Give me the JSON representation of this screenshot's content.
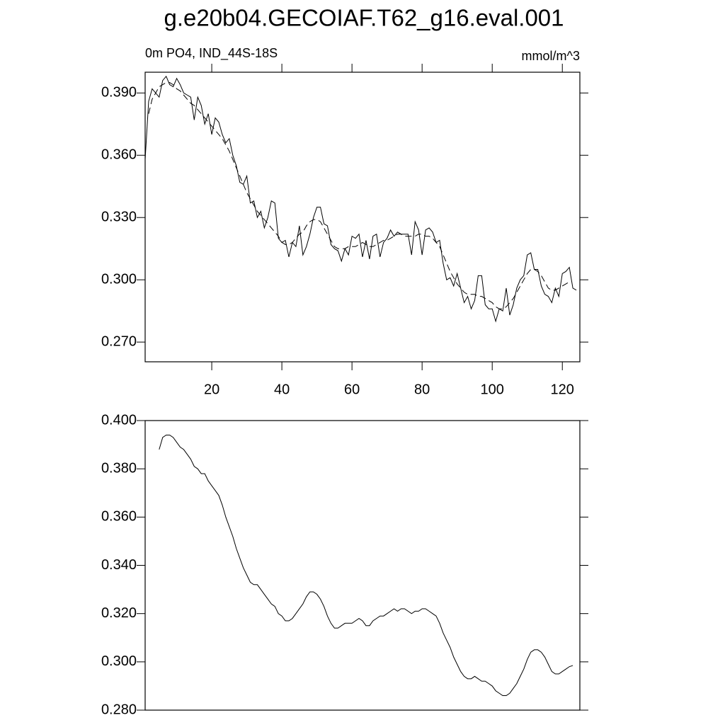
{
  "chart_data": [
    {
      "type": "line",
      "title": "g.e20b04.GECOIAF.T62_g16.eval.001",
      "subtitle": "0m PO4, IND_44S-18S",
      "units": "mmol/m^3",
      "x": [
        1,
        2,
        3,
        4,
        5,
        6,
        7,
        8,
        9,
        10,
        11,
        12,
        13,
        14,
        15,
        16,
        17,
        18,
        19,
        20,
        21,
        22,
        23,
        24,
        25,
        26,
        27,
        28,
        29,
        30,
        31,
        32,
        33,
        34,
        35,
        36,
        37,
        38,
        39,
        40,
        41,
        42,
        43,
        44,
        45,
        46,
        47,
        48,
        49,
        50,
        51,
        52,
        53,
        54,
        55,
        56,
        57,
        58,
        59,
        60,
        61,
        62,
        63,
        64,
        65,
        66,
        67,
        68,
        69,
        70,
        71,
        72,
        73,
        74,
        75,
        76,
        77,
        78,
        79,
        80,
        81,
        82,
        83,
        84,
        85,
        86,
        87,
        88,
        89,
        90,
        91,
        92,
        93,
        94,
        95,
        96,
        97,
        98,
        99,
        100,
        101,
        102,
        103,
        104,
        105,
        106,
        107,
        108,
        109,
        110,
        111,
        112,
        113,
        114,
        115,
        116,
        117,
        118,
        119,
        120,
        121,
        122,
        123,
        124
      ],
      "series": [
        {
          "color": "#000000",
          "dashed": false,
          "values": [
            0.358,
            0.386,
            0.392,
            0.39,
            0.388,
            0.396,
            0.398,
            0.394,
            0.393,
            0.397,
            0.394,
            0.39,
            0.389,
            0.388,
            0.377,
            0.388,
            0.384,
            0.375,
            0.38,
            0.37,
            0.378,
            0.376,
            0.37,
            0.366,
            0.368,
            0.36,
            0.355,
            0.347,
            0.346,
            0.35,
            0.337,
            0.338,
            0.33,
            0.333,
            0.325,
            0.33,
            0.338,
            0.337,
            0.32,
            0.318,
            0.319,
            0.311,
            0.318,
            0.316,
            0.326,
            0.312,
            0.316,
            0.322,
            0.33,
            0.335,
            0.335,
            0.327,
            0.326,
            0.317,
            0.315,
            0.314,
            0.309,
            0.315,
            0.312,
            0.321,
            0.32,
            0.322,
            0.311,
            0.319,
            0.31,
            0.321,
            0.322,
            0.311,
            0.318,
            0.32,
            0.324,
            0.321,
            0.323,
            0.322,
            0.322,
            0.322,
            0.312,
            0.328,
            0.324,
            0.312,
            0.324,
            0.325,
            0.323,
            0.318,
            0.319,
            0.308,
            0.3,
            0.301,
            0.297,
            0.303,
            0.296,
            0.289,
            0.292,
            0.286,
            0.29,
            0.302,
            0.302,
            0.288,
            0.286,
            0.286,
            0.28,
            0.286,
            0.285,
            0.296,
            0.283,
            0.288,
            0.296,
            0.3,
            0.302,
            0.312,
            0.313,
            0.305,
            0.305,
            0.297,
            0.293,
            0.292,
            0.289,
            0.296,
            0.292,
            0.303,
            0.304,
            0.306,
            0.296,
            0.295
          ]
        },
        {
          "color": "#000000",
          "dashed": true,
          "values": [
            null,
            0.38,
            0.387,
            0.39,
            0.393,
            0.394,
            0.395,
            0.395,
            0.394,
            0.392,
            0.391,
            0.389,
            0.387,
            0.385,
            0.384,
            0.382,
            0.38,
            0.378,
            0.376,
            0.374,
            0.372,
            0.37,
            0.368,
            0.365,
            0.362,
            0.358,
            0.354,
            0.35,
            0.346,
            0.342,
            0.339,
            0.336,
            0.333,
            0.331,
            0.329,
            0.327,
            0.325,
            0.323,
            0.321,
            0.318,
            0.317,
            0.317,
            0.318,
            0.32,
            0.322,
            0.323,
            0.326,
            0.328,
            0.329,
            0.329,
            0.328,
            0.325,
            0.322,
            0.319,
            0.316,
            0.315,
            0.315,
            0.315,
            0.316,
            0.316,
            0.316,
            0.317,
            0.318,
            0.317,
            0.316,
            0.316,
            0.317,
            0.318,
            0.319,
            0.319,
            0.32,
            0.321,
            0.322,
            0.322,
            0.321,
            0.321,
            0.321,
            0.321,
            0.322,
            0.322,
            0.321,
            0.321,
            0.32,
            0.318,
            0.316,
            0.312,
            0.308,
            0.304,
            0.301,
            0.298,
            0.296,
            0.294,
            0.293,
            0.293,
            0.293,
            0.292,
            0.292,
            0.291,
            0.29,
            0.289,
            0.287,
            0.286,
            0.286,
            0.287,
            0.289,
            0.291,
            0.294,
            0.297,
            0.3,
            0.303,
            0.305,
            0.305,
            0.304,
            0.302,
            0.299,
            0.296,
            0.295,
            0.295,
            0.296,
            0.297,
            0.298,
            0.299,
            null,
            null
          ]
        }
      ],
      "xlim": [
        1,
        125
      ],
      "xticks": [
        20,
        40,
        60,
        80,
        100,
        120
      ],
      "ylim": [
        0.2605,
        0.4
      ],
      "yticks": [
        {
          "value": 0.27,
          "label": "0.270"
        },
        {
          "value": 0.3,
          "label": "0.300"
        },
        {
          "value": 0.33,
          "label": "0.330"
        },
        {
          "value": 0.36,
          "label": "0.360"
        },
        {
          "value": 0.39,
          "label": "0.390"
        }
      ]
    },
    {
      "type": "line",
      "x": [
        1,
        2,
        3,
        4,
        5,
        6,
        7,
        8,
        9,
        10,
        11,
        12,
        13,
        14,
        15,
        16,
        17,
        18,
        19,
        20,
        21,
        22,
        23,
        24,
        25,
        26,
        27,
        28,
        29,
        30,
        31,
        32,
        33,
        34,
        35,
        36,
        37,
        38,
        39,
        40,
        41,
        42,
        43,
        44,
        45,
        46,
        47,
        48,
        49,
        50,
        51,
        52,
        53,
        54,
        55,
        56,
        57,
        58,
        59,
        60,
        61,
        62,
        63,
        64,
        65,
        66,
        67,
        68,
        69,
        70,
        71,
        72,
        73,
        74,
        75,
        76,
        77,
        78,
        79,
        80,
        81,
        82,
        83,
        84,
        85,
        86,
        87,
        88,
        89,
        90,
        91,
        92,
        93,
        94,
        95,
        96,
        97,
        98,
        99,
        100,
        101,
        102,
        103,
        104,
        105,
        106,
        107,
        108,
        109,
        110,
        111,
        112,
        113,
        114,
        115,
        116,
        117,
        118,
        119,
        120,
        121,
        122,
        123,
        124
      ],
      "series": [
        {
          "color": "#000000",
          "dashed": false,
          "values": [
            null,
            null,
            null,
            null,
            0.388,
            0.393,
            0.394,
            0.394,
            0.393,
            0.391,
            0.389,
            0.388,
            0.386,
            0.384,
            0.381,
            0.38,
            0.378,
            0.378,
            0.375,
            0.373,
            0.371,
            0.369,
            0.365,
            0.36,
            0.356,
            0.352,
            0.347,
            0.343,
            0.339,
            0.336,
            0.333,
            0.332,
            0.332,
            0.33,
            0.328,
            0.326,
            0.324,
            0.323,
            0.32,
            0.319,
            0.317,
            0.317,
            0.318,
            0.32,
            0.322,
            0.324,
            0.327,
            0.329,
            0.329,
            0.328,
            0.326,
            0.323,
            0.319,
            0.316,
            0.314,
            0.314,
            0.315,
            0.316,
            0.316,
            0.316,
            0.317,
            0.318,
            0.317,
            0.315,
            0.315,
            0.317,
            0.318,
            0.319,
            0.319,
            0.32,
            0.321,
            0.322,
            0.321,
            0.322,
            0.322,
            0.321,
            0.32,
            0.321,
            0.321,
            0.322,
            0.322,
            0.321,
            0.32,
            0.319,
            0.316,
            0.312,
            0.309,
            0.306,
            0.302,
            0.299,
            0.296,
            0.294,
            0.293,
            0.293,
            0.294,
            0.293,
            0.292,
            0.292,
            0.291,
            0.29,
            0.288,
            0.287,
            0.286,
            0.286,
            0.287,
            0.289,
            0.291,
            0.294,
            0.297,
            0.301,
            0.304,
            0.305,
            0.305,
            0.304,
            0.302,
            0.299,
            0.296,
            0.295,
            0.295,
            0.296,
            0.297,
            0.298,
            0.2985,
            null
          ]
        }
      ],
      "xlim": [
        1,
        125
      ],
      "ylim": [
        0.28,
        0.4
      ],
      "yticks": [
        {
          "value": 0.28,
          "label": "0.280"
        },
        {
          "value": 0.3,
          "label": "0.300"
        },
        {
          "value": 0.32,
          "label": "0.320"
        },
        {
          "value": 0.34,
          "label": "0.340"
        },
        {
          "value": 0.36,
          "label": "0.360"
        },
        {
          "value": 0.38,
          "label": "0.380"
        },
        {
          "value": 0.4,
          "label": "0.400"
        }
      ]
    }
  ]
}
